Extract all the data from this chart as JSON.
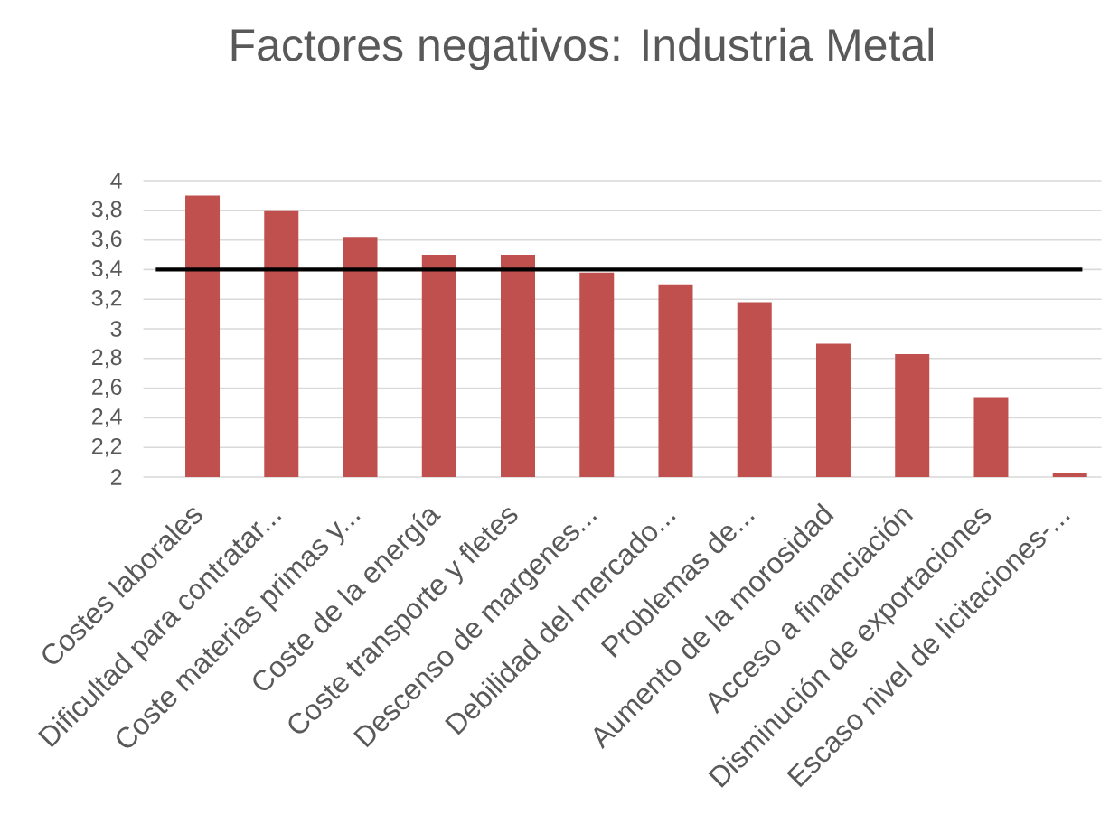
{
  "chart_data": {
    "type": "bar",
    "title": "Factores negativos: Industria Metal",
    "categories": [
      "Costes laborales",
      "Dificultad para contratar...",
      "Coste materias primas y...",
      "Coste de la energía",
      "Coste transporte y fletes",
      "Descenso de margenes...",
      "Debilidad del mercado...",
      "Problemas de...",
      "Aumento de la morosidad",
      "Acceso a financiación",
      "Disminución de exportaciones",
      "Escaso nivel de licitaciones-..."
    ],
    "values": [
      3.9,
      3.8,
      3.62,
      3.5,
      3.5,
      3.38,
      3.3,
      3.18,
      2.9,
      2.83,
      2.54,
      2.03
    ],
    "color": "#c0504d",
    "ylim": [
      2,
      4
    ],
    "yticks": [
      2,
      {
        "value": 2.2,
        "label": "2,2"
      },
      {
        "value": 2.4,
        "label": "2,4"
      },
      {
        "value": 2.6,
        "label": "2,6"
      },
      {
        "value": 2.8,
        "label": "2,8"
      },
      3,
      {
        "value": 3.2,
        "label": "3,2"
      },
      {
        "value": 3.4,
        "label": "3,4"
      },
      {
        "value": 3.6,
        "label": "3,6"
      },
      {
        "value": 3.8,
        "label": "3,8"
      },
      4
    ],
    "grid": "y",
    "ref_lines": [
      {
        "axis": "y",
        "value": 3.4,
        "color": "#000000"
      }
    ]
  }
}
